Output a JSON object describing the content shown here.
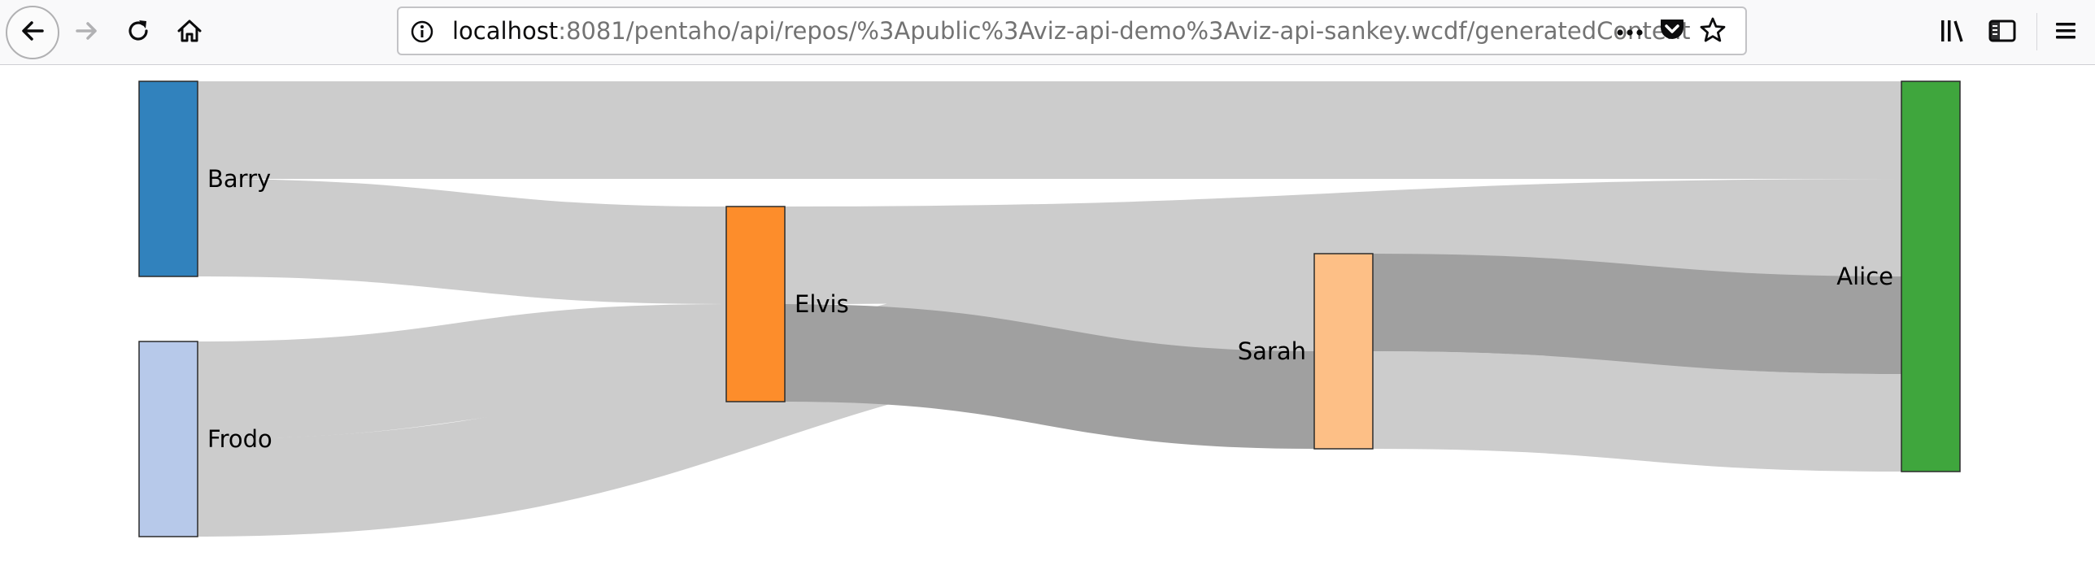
{
  "browser": {
    "url_host": "localhost",
    "url_rest": ":8081/pentaho/api/repos/%3Apublic%3Aviz-api-demo%3Aviz-api-sankey.wcdf/generatedContent",
    "icons": {
      "back": "back-arrow-icon",
      "forward": "forward-arrow-icon",
      "reload": "reload-icon",
      "home": "home-icon",
      "info": "info-icon",
      "page_actions": "more-horizontal-icon",
      "pocket": "pocket-icon",
      "bookmark": "star-icon",
      "library": "library-icon",
      "sidebar": "sidebar-icon",
      "menu": "hamburger-menu-icon"
    }
  },
  "chart_data": {
    "type": "sankey",
    "link_color": "#cccccc",
    "link_highlight_color": "#a0a0a0",
    "nodes": [
      {
        "name": "Barry",
        "column": 0,
        "color": "#3182bd"
      },
      {
        "name": "Frodo",
        "column": 0,
        "color": "#b7c9ea"
      },
      {
        "name": "Elvis",
        "column": 1,
        "color": "#fd8d2b"
      },
      {
        "name": "Sarah",
        "column": 2,
        "color": "#fdbf86"
      },
      {
        "name": "Alice",
        "column": 3,
        "color": "#3fa63d"
      }
    ],
    "links": [
      {
        "source": "Barry",
        "target": "Alice",
        "value": 2,
        "highlight": false
      },
      {
        "source": "Barry",
        "target": "Elvis",
        "value": 2,
        "highlight": false
      },
      {
        "source": "Frodo",
        "target": "Elvis",
        "value": 2,
        "highlight": false
      },
      {
        "source": "Frodo",
        "target": "Sarah",
        "value": 2,
        "highlight": false
      },
      {
        "source": "Elvis",
        "target": "Alice",
        "value": 2,
        "highlight": false
      },
      {
        "source": "Elvis",
        "target": "Sarah",
        "value": 2,
        "highlight": true
      },
      {
        "source": "Sarah",
        "target": "Alice",
        "value": 2,
        "highlight": true
      },
      {
        "source": "Sarah",
        "target": "Alice",
        "value": 2,
        "highlight": false
      }
    ]
  }
}
